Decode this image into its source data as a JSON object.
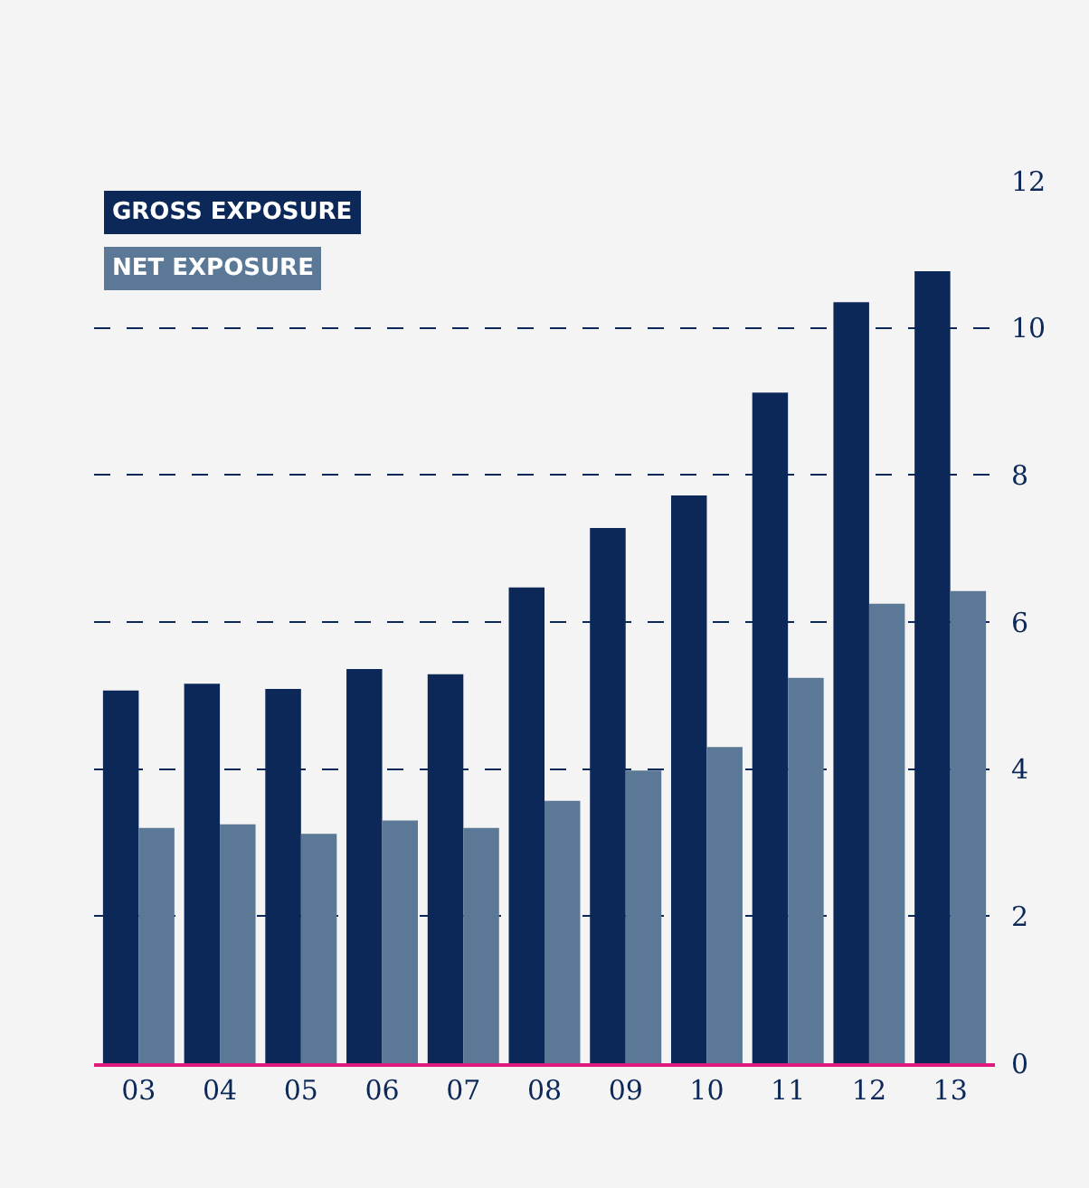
{
  "chart_data": {
    "type": "bar",
    "categories": [
      "03",
      "04",
      "05",
      "06",
      "07",
      "08",
      "09",
      "10",
      "11",
      "12",
      "13"
    ],
    "series": [
      {
        "name": "GROSS EXPOSURE",
        "color": "#0c2858",
        "values": [
          5.07,
          5.16,
          5.09,
          5.36,
          5.29,
          6.47,
          7.28,
          7.72,
          9.12,
          10.35,
          10.77
        ]
      },
      {
        "name": "NET EXPOSURE",
        "color": "#5b7896",
        "values": [
          3.2,
          3.25,
          3.12,
          3.3,
          3.2,
          3.57,
          3.98,
          4.3,
          5.24,
          6.25,
          6.42
        ]
      }
    ],
    "ylim": [
      0,
      12
    ],
    "yticks": [
      0,
      2,
      4,
      6,
      8,
      10,
      12
    ],
    "grid": "y",
    "legend": "top left"
  }
}
